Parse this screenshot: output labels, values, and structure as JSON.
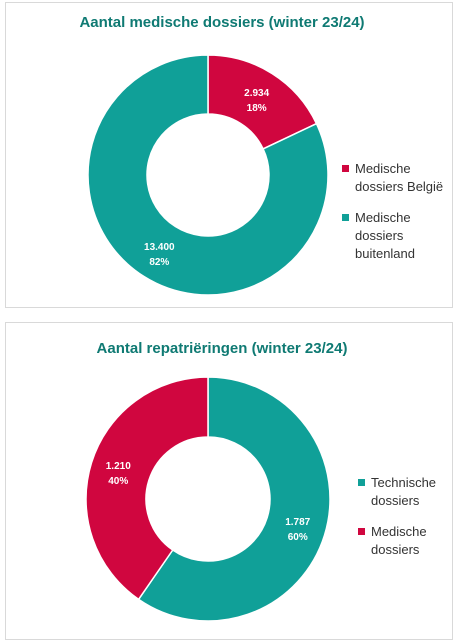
{
  "chart_data": [
    {
      "type": "pie",
      "title": "Aantal medische dossiers (winter 23/24)",
      "labels": [
        "Medische dossiers België",
        "Medische dossiers buitenland"
      ],
      "values": [
        2934,
        13400
      ],
      "value_labels": [
        "2.934",
        "13.400"
      ],
      "percent_labels": [
        "18%",
        "82%"
      ],
      "colors": [
        "#d0063f",
        "#10a098"
      ],
      "legend_lines": [
        [
          "Medische",
          "dossiers België"
        ],
        [
          "Medische",
          "dossiers",
          "buitenland"
        ]
      ],
      "legend_position": "right",
      "donut": true
    },
    {
      "type": "pie",
      "title": "Aantal repatriëringen (winter 23/24)",
      "labels": [
        "Technische dossiers",
        "Medische dossiers"
      ],
      "values": [
        1787,
        1210
      ],
      "value_labels": [
        "1.787",
        "1.210"
      ],
      "percent_labels": [
        "60%",
        "40%"
      ],
      "colors": [
        "#10a098",
        "#d0063f"
      ],
      "legend_lines": [
        [
          "Technische",
          "dossiers"
        ],
        [
          "Medische",
          "dossiers"
        ]
      ],
      "legend_position": "right",
      "donut": true
    }
  ]
}
